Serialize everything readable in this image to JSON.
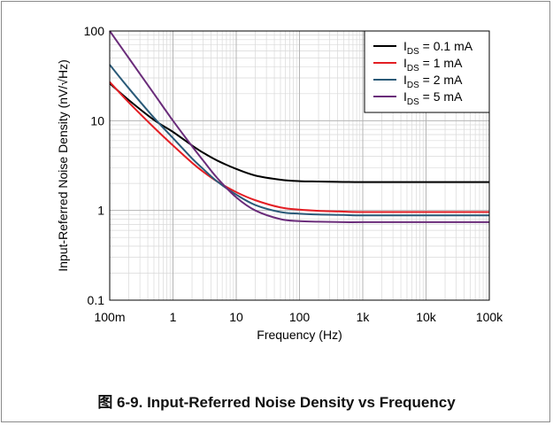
{
  "caption": "图 6-9. Input-Referred Noise Density vs Frequency",
  "chart_data": {
    "type": "line",
    "title": "",
    "xlabel": "Frequency (Hz)",
    "ylabel": "Input-Referred Noise Density (nV/√Hz)",
    "x_scale": "log",
    "y_scale": "log",
    "xlim": [
      0.1,
      100000
    ],
    "ylim": [
      0.1,
      100
    ],
    "x_ticks": [
      {
        "value": 0.1,
        "label": "100m"
      },
      {
        "value": 1,
        "label": "1"
      },
      {
        "value": 10,
        "label": "10"
      },
      {
        "value": 100,
        "label": "100"
      },
      {
        "value": 1000,
        "label": "1k"
      },
      {
        "value": 10000,
        "label": "10k"
      },
      {
        "value": 100000,
        "label": "100k"
      }
    ],
    "y_ticks": [
      {
        "value": 0.1,
        "label": "0.1"
      },
      {
        "value": 1,
        "label": "1"
      },
      {
        "value": 10,
        "label": "10"
      },
      {
        "value": 100,
        "label": "100"
      }
    ],
    "grid": true,
    "legend_position": "top-right",
    "series": [
      {
        "label_main": "I",
        "label_sub": "DS",
        "label_value": " = 0.1 mA",
        "color": "#000000",
        "x": [
          0.1,
          0.2,
          0.5,
          1,
          2,
          3,
          5,
          10,
          20,
          50,
          100,
          200,
          500,
          1000,
          10000,
          100000
        ],
        "y": [
          26,
          17,
          10.2,
          7.5,
          5.3,
          4.4,
          3.6,
          2.9,
          2.45,
          2.2,
          2.12,
          2.1,
          2.08,
          2.07,
          2.07,
          2.07
        ]
      },
      {
        "label_main": "I",
        "label_sub": "DS",
        "label_value": " = 1 mA",
        "color": "#e31e24",
        "x": [
          0.1,
          0.2,
          0.5,
          1,
          2,
          3,
          5,
          10,
          20,
          50,
          100,
          200,
          500,
          1000,
          10000,
          100000
        ],
        "y": [
          27,
          16,
          8.4,
          5.3,
          3.4,
          2.7,
          2.1,
          1.6,
          1.3,
          1.08,
          1.02,
          0.99,
          0.97,
          0.96,
          0.96,
          0.96
        ]
      },
      {
        "label_main": "I",
        "label_sub": "DS",
        "label_value": " = 2 mA",
        "color": "#2a5a78",
        "x": [
          0.1,
          0.2,
          0.5,
          1,
          2,
          3,
          5,
          10,
          20,
          50,
          100,
          200,
          500,
          1000,
          10000,
          100000
        ],
        "y": [
          42,
          23,
          10.8,
          6.4,
          3.8,
          2.9,
          2.1,
          1.5,
          1.15,
          0.96,
          0.92,
          0.9,
          0.89,
          0.88,
          0.88,
          0.88
        ]
      },
      {
        "label_main": "I",
        "label_sub": "DS",
        "label_value": " = 5 mA",
        "color": "#6a2c7a",
        "x": [
          0.1,
          0.2,
          0.5,
          1,
          2,
          3,
          5,
          10,
          20,
          50,
          100,
          200,
          500,
          1000,
          10000,
          100000
        ],
        "y": [
          100,
          50,
          20,
          10,
          5.2,
          3.6,
          2.3,
          1.4,
          1.0,
          0.8,
          0.76,
          0.75,
          0.74,
          0.74,
          0.74,
          0.74
        ]
      }
    ]
  }
}
